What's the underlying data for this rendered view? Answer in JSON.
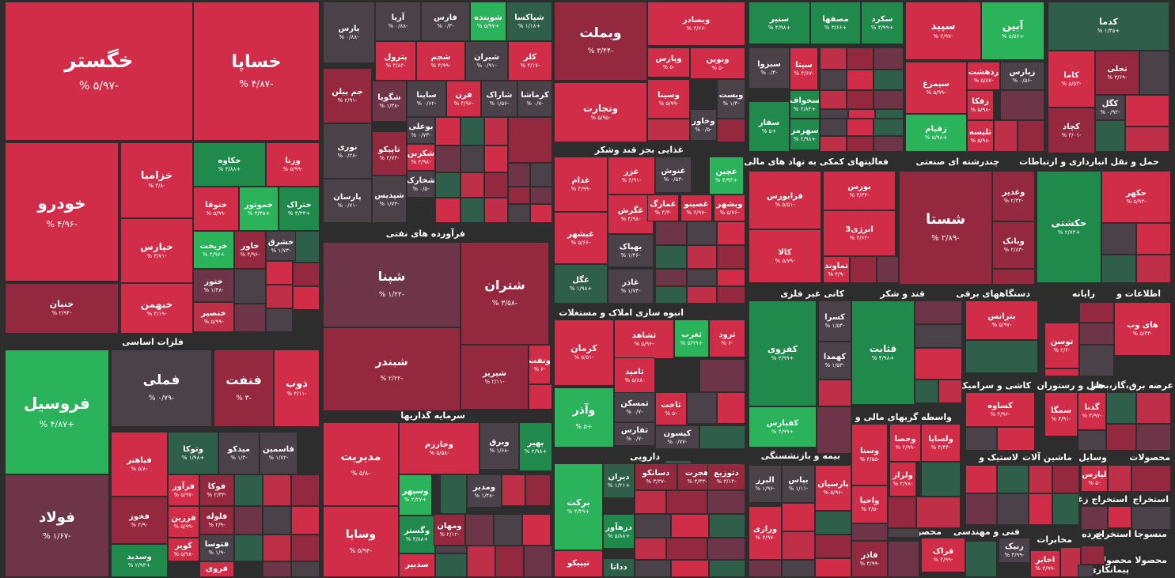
{
  "colors": {
    "background": "#2d2d2d",
    "strong_red": "#d22d48",
    "red": "#bf2f48",
    "dark_red": "#93283f",
    "muted_red": "#6e3548",
    "neutral": "#4a4248",
    "green": "#2bb35c",
    "mid_green": "#1f8a4c",
    "dark_green": "#2f5e4a"
  },
  "sectors": [
    {
      "label": "فلزات اساسی"
    },
    {
      "label": "فرآورده های نفتی"
    },
    {
      "label": "سرمایه گذاریها"
    },
    {
      "label": "غذایی بجز قند وشکر"
    },
    {
      "label": "انبوه سازی املاک و مستغلات"
    },
    {
      "label": "دارویی"
    },
    {
      "label": "فعالیتهای کمکی به نهاد های مالی واسط"
    },
    {
      "label": "چندرشته ای صنعتی"
    },
    {
      "label": "حمل و نقل انبارداری و ارتباطات"
    },
    {
      "label": "کانی غیر فلزی"
    },
    {
      "label": "قند و شکر"
    },
    {
      "label": "دستگاههای برقی"
    },
    {
      "label": "رایانه"
    },
    {
      "label": "اطلاعات و"
    },
    {
      "label": "بیمه و بازنشستگی"
    },
    {
      "label": "واسطه گریهای مالی و پولی"
    },
    {
      "label": "کاشی و سرامیک"
    },
    {
      "label": "هتل و رستوران"
    },
    {
      "label": "عرضه برق،گاز،بخار"
    },
    {
      "label": "لاستیک و"
    },
    {
      "label": "ماشین آلات"
    },
    {
      "label": "وسایل"
    },
    {
      "label": "محصولات"
    },
    {
      "label": "محصولات فلزی"
    },
    {
      "label": "فنی و مهندسی"
    },
    {
      "label": "مخابرات"
    },
    {
      "label": "استخراج زغال"
    },
    {
      "label": "استخراج"
    },
    {
      "label": "خرده"
    },
    {
      "label": "منسوجا استخراج"
    },
    {
      "label": "محصولا محصولا"
    },
    {
      "label": "پیمانکاری"
    }
  ],
  "tiles": [
    {
      "name": "خگستر",
      "change": "-۵/۹۷ %",
      "tone": "strong_red"
    },
    {
      "name": "خساپا",
      "change": "-۴/۸۷ %",
      "tone": "strong_red"
    },
    {
      "name": "خودرو",
      "change": "-۴/۹۶ %",
      "tone": "strong_red"
    },
    {
      "name": "خزامیا",
      "change": "-۴/۸ %",
      "tone": "strong_red"
    },
    {
      "name": "خکاوه",
      "change": "+۳/۸۸ %",
      "tone": "mid_green"
    },
    {
      "name": "ورنا",
      "change": "-۵/۹۹ %",
      "tone": "strong_red"
    },
    {
      "name": "ختوقا",
      "change": "-۵/۹۹ %",
      "tone": "strong_red"
    },
    {
      "name": "خموتور",
      "change": "+۳/۳۵ %",
      "tone": "green"
    },
    {
      "name": "ختراک",
      "change": "+۴/۳۳ %",
      "tone": "mid_green"
    },
    {
      "name": "خپارس",
      "change": "-۴/۷۱ %",
      "tone": "strong_red"
    },
    {
      "name": "خریخت",
      "change": "+۴/۹۷ %",
      "tone": "green"
    },
    {
      "name": "خاور",
      "change": "-۴/۹۶ %",
      "tone": "dark_red"
    },
    {
      "name": "خشرق",
      "change": "-۱/۷۳ %",
      "tone": "neutral"
    },
    {
      "name": "ختور",
      "change": "-۱/۴۸ %",
      "tone": "muted_red"
    },
    {
      "name": "خبهمن",
      "change": "-۴/۱۹ %",
      "tone": "strong_red"
    },
    {
      "name": "خنصیر",
      "change": "-۵/۹۹ %",
      "tone": "red"
    },
    {
      "name": "خنیان",
      "change": "-۲/۹۴ %",
      "tone": "dark_red"
    },
    {
      "name": "فروسیل",
      "change": "+۴/۸۷ %",
      "tone": "green"
    },
    {
      "name": "فملی",
      "change": "-۰/۷۹ %",
      "tone": "neutral"
    },
    {
      "name": "فنفت",
      "change": "-۳ %",
      "tone": "dark_red"
    },
    {
      "name": "ذوب",
      "change": "-۴/۱۱ %",
      "tone": "strong_red"
    },
    {
      "name": "فولاد",
      "change": "-۱/۶۷ %",
      "tone": "muted_red"
    },
    {
      "name": "فباهنر",
      "change": "-۵/۸ %",
      "tone": "strong_red"
    },
    {
      "name": "وتوکا",
      "change": "+۱/۹۸ %",
      "tone": "dark_green"
    },
    {
      "name": "میدکو",
      "change": "-۱/۳ %",
      "tone": "neutral"
    },
    {
      "name": "فاسمین",
      "change": "-۱/۷۲ %",
      "tone": "neutral"
    },
    {
      "name": "فخوز",
      "change": "-۲/۹ %",
      "tone": "dark_red"
    },
    {
      "name": "فرآور",
      "change": "-۵/۹۷ %",
      "tone": "strong_red"
    },
    {
      "name": "فوکا",
      "change": "-۲/۳۳ %",
      "tone": "dark_red"
    },
    {
      "name": "فزرین",
      "change": "-۵/۹۹ %",
      "tone": "strong_red"
    },
    {
      "name": "فلوله",
      "change": "-۲/۹ %",
      "tone": "dark_red"
    },
    {
      "name": "کویر",
      "change": "-۵/۹۸ %",
      "tone": "strong_red"
    },
    {
      "name": "فتوسا",
      "change": "-۱/۹ %",
      "tone": "neutral"
    },
    {
      "name": "فروی",
      "change": "",
      "tone": "strong_red"
    },
    {
      "name": "وسدید",
      "change": "+۲/۹۳ %",
      "tone": "mid_green"
    },
    {
      "name": "پارس",
      "change": "-۰/۸۸ %",
      "tone": "neutral"
    },
    {
      "name": "آریا",
      "change": "-۰/۸۸ %",
      "tone": "neutral"
    },
    {
      "name": "فارس",
      "change": "-۰/۳ %",
      "tone": "neutral"
    },
    {
      "name": "شوینده",
      "change": "+۵/۹۷ %",
      "tone": "green"
    },
    {
      "name": "شپاکسا",
      "change": "+۱/۱۸ %",
      "tone": "dark_green"
    },
    {
      "name": "پترول",
      "change": "-۴/۸۴ %",
      "tone": "strong_red"
    },
    {
      "name": "شجم",
      "change": "-۴/۹۹ %",
      "tone": "strong_red"
    },
    {
      "name": "شیران",
      "change": "-۰/۹۱ %",
      "tone": "neutral"
    },
    {
      "name": "کلر",
      "change": "-۴/۱۷ %",
      "tone": "strong_red"
    },
    {
      "name": "جم پیلن",
      "change": "-۲/۹۱ %",
      "tone": "dark_red"
    },
    {
      "name": "شگویا",
      "change": "-۱/۳۸ %",
      "tone": "muted_red"
    },
    {
      "name": "ساینا",
      "change": "-۰/۶۲ %",
      "tone": "neutral"
    },
    {
      "name": "فرن",
      "change": "-۴/۹۶ %",
      "tone": "strong_red"
    },
    {
      "name": "شاراک",
      "change": "-۱/۵۶ %",
      "tone": "neutral"
    },
    {
      "name": "کرماشا",
      "change": "-۰/۷ %",
      "tone": "neutral"
    },
    {
      "name": "بوعلی",
      "change": "-۰/۷۳ %",
      "tone": "neutral"
    },
    {
      "name": "نوری",
      "change": "-۰/۲۸ %",
      "tone": "neutral"
    },
    {
      "name": "تاپیکو",
      "change": "-۲/۷۳ %",
      "tone": "dark_red"
    },
    {
      "name": "شکربن",
      "change": "-۴/۹۸ %",
      "tone": "strong_red"
    },
    {
      "name": "شخارک",
      "change": "-۰/۵ %",
      "tone": "neutral"
    },
    {
      "name": "پارسان",
      "change": "-۰/۷۱ %",
      "tone": "neutral"
    },
    {
      "name": "شپدیس",
      "change": "-۱/۷۳ %",
      "tone": "neutral"
    },
    {
      "name": "شپنا",
      "change": "-۱/۲۲ %",
      "tone": "muted_red"
    },
    {
      "name": "شتران",
      "change": "-۳/۵۸ %",
      "tone": "dark_red"
    },
    {
      "name": "شبندر",
      "change": "-۲/۲۲ %",
      "tone": "dark_red"
    },
    {
      "name": "شیریز",
      "change": "-۲/۱۱ %",
      "tone": "dark_red"
    },
    {
      "name": "ونفت",
      "change": "-۶ %",
      "tone": "strong_red"
    },
    {
      "name": "مدیریت",
      "change": "-۵/۸ %",
      "tone": "strong_red"
    },
    {
      "name": "وخارزم",
      "change": "-۵/۵۸ %",
      "tone": "strong_red"
    },
    {
      "name": "وبرق",
      "change": "-۱/۶۸ %",
      "tone": "neutral"
    },
    {
      "name": "بهیر",
      "change": "+۲/۹۸ %",
      "tone": "mid_green"
    },
    {
      "name": "وسپهر",
      "change": "+۲/۲۷ %",
      "tone": "green"
    },
    {
      "name": "ومدیر",
      "change": "-۱/۴۸ %",
      "tone": "neutral"
    },
    {
      "name": "وگستر",
      "change": "+۴/۸۸ %",
      "tone": "mid_green"
    },
    {
      "name": "ومهان",
      "change": "-۲/۱۲ %",
      "tone": "dark_red"
    },
    {
      "name": "وساپا",
      "change": "-۵/۹۴ %",
      "tone": "strong_red"
    },
    {
      "name": "سدبیر",
      "change": "",
      "tone": "strong_red"
    },
    {
      "name": "وبملت",
      "change": "-۳/۴۴ %",
      "tone": "dark_red"
    },
    {
      "name": "وبصادر",
      "change": "-۴/۶۶ %",
      "tone": "strong_red"
    },
    {
      "name": "وتجارت",
      "change": "-۵/۹۵ %",
      "tone": "strong_red"
    },
    {
      "name": "وپارس",
      "change": "-۵ %",
      "tone": "strong_red"
    },
    {
      "name": "ونوین",
      "change": "-۵ %",
      "tone": "strong_red"
    },
    {
      "name": "وسینا",
      "change": "-۵/۹۹ %",
      "tone": "strong_red"
    },
    {
      "name": "وبست",
      "change": "-۱/۳ %",
      "tone": "neutral"
    },
    {
      "name": "وخاور",
      "change": "-۰/۵ %",
      "tone": "neutral"
    },
    {
      "name": "غدام",
      "change": "-۴/۹۹ %",
      "tone": "strong_red"
    },
    {
      "name": "غزر",
      "change": "-۴/۹۱ %",
      "tone": "strong_red"
    },
    {
      "name": "غنوش",
      "change": "-۰/۵۳ %",
      "tone": "neutral"
    },
    {
      "name": "غچین",
      "change": "+۴/۹۳ %",
      "tone": "green"
    },
    {
      "name": "غگرش",
      "change": "-۴/۹۸ %",
      "tone": "strong_red"
    },
    {
      "name": "غمارگ",
      "change": "-۴/۴ %",
      "tone": "strong_red"
    },
    {
      "name": "غصینو",
      "change": "-۴/۹۷ %",
      "tone": "strong_red"
    },
    {
      "name": "وبشهر",
      "change": "-۵/۷۶ %",
      "tone": "strong_red"
    },
    {
      "name": "غبشهر",
      "change": "-۵/۶۶ %",
      "tone": "strong_red"
    },
    {
      "name": "بهپاک",
      "change": "-۱/۴۶ %",
      "tone": "neutral"
    },
    {
      "name": "غگل",
      "change": "+۱/۹۸ %",
      "tone": "dark_green"
    },
    {
      "name": "غاذر",
      "change": "-۱/۷۳ %",
      "tone": "neutral"
    },
    {
      "name": "کرمان",
      "change": "-۵/۵۱ %",
      "tone": "strong_red"
    },
    {
      "name": "ثشاهد",
      "change": "-۵/۹۶ %",
      "tone": "strong_red"
    },
    {
      "name": "ثغرب",
      "change": "+۵/۹۹ %",
      "tone": "green"
    },
    {
      "name": "ثرود",
      "change": "-۶ %",
      "tone": "strong_red"
    },
    {
      "name": "ثامید",
      "change": "-۵/۸۸ %",
      "tone": "strong_red"
    },
    {
      "name": "وآذر",
      "change": "+۵ %",
      "tone": "green"
    },
    {
      "name": "ثمسکن",
      "change": "-۰/۷ %",
      "tone": "neutral"
    },
    {
      "name": "ثاخت",
      "change": "-۵ %",
      "tone": "strong_red"
    },
    {
      "name": "ثفارس",
      "change": "-۰/۷ %",
      "tone": "neutral"
    },
    {
      "name": "کیسون",
      "change": "-۰/۷۷ %",
      "tone": "neutral"
    },
    {
      "name": "برکت",
      "change": "+۴/۴۹ %",
      "tone": "green"
    },
    {
      "name": "دیران",
      "change": "+۱/۲۱ %",
      "tone": "dark_green"
    },
    {
      "name": "دسانکو",
      "change": "-۳/۳۷ %",
      "tone": "dark_red"
    },
    {
      "name": "هجرت",
      "change": "-۳/۳۳ %",
      "tone": "dark_red"
    },
    {
      "name": "دتوزیع",
      "change": "-۳/۱۴ %",
      "tone": "dark_red"
    },
    {
      "name": "درهآور",
      "change": "+۵/۸۸ %",
      "tone": "mid_green"
    },
    {
      "name": "تیپیکو",
      "change": "",
      "tone": "strong_red"
    },
    {
      "name": "دداتا",
      "change": "",
      "tone": "dark_green"
    },
    {
      "name": "سنیر",
      "change": "+۴/۹۸ %",
      "tone": "mid_green"
    },
    {
      "name": "مصفها",
      "change": "+۳/۶۶ %",
      "tone": "mid_green"
    },
    {
      "name": "سکرد",
      "change": "+۳/۹۹ %",
      "tone": "mid_green"
    },
    {
      "name": "سپید",
      "change": "-۴/۹۷ %",
      "tone": "strong_red"
    },
    {
      "name": "آبین",
      "change": "+۵/۵۷ %",
      "tone": "green"
    },
    {
      "name": "کدما",
      "change": "+۱/۴۵ %",
      "tone": "dark_green"
    },
    {
      "name": "سبزوا",
      "change": "-۰/۴ %",
      "tone": "neutral"
    },
    {
      "name": "سیتا",
      "change": "-۴/۶۷ %",
      "tone": "strong_red"
    },
    {
      "name": "سیمرغ",
      "change": "-۵/۹۹ %",
      "tone": "strong_red"
    },
    {
      "name": "رذهشت",
      "change": "-۵/۸۷ %",
      "tone": "strong_red"
    },
    {
      "name": "زپارس",
      "change": "-۰/۵۶ %",
      "tone": "neutral"
    },
    {
      "name": "کاما",
      "change": "-۵/۵۳ %",
      "tone": "strong_red"
    },
    {
      "name": "تجلی",
      "change": "-۳/۶۹ %",
      "tone": "dark_red"
    },
    {
      "name": "سخواف",
      "change": "+۲/۸۲ %",
      "tone": "mid_green"
    },
    {
      "name": "زفکا",
      "change": "-۵/۹۸ %",
      "tone": "strong_red"
    },
    {
      "name": "کگل",
      "change": "-۰/۹۲ %",
      "tone": "neutral"
    },
    {
      "name": "سفار",
      "change": "+۵ %",
      "tone": "mid_green"
    },
    {
      "name": "سهرمز",
      "change": "+۲/۹۸ %",
      "tone": "mid_green"
    },
    {
      "name": "زقیام",
      "change": "+۵/۹۸ %",
      "tone": "green"
    },
    {
      "name": "تلیسه",
      "change": "-۵/۹۸ %",
      "tone": "strong_red"
    },
    {
      "name": "کچاد",
      "change": "-۳/۰۱ %",
      "tone": "dark_red"
    },
    {
      "name": "فرابورس",
      "change": "-۵/۵۱ %",
      "tone": "strong_red"
    },
    {
      "name": "بورس",
      "change": "-۴/۳۴ %",
      "tone": "strong_red"
    },
    {
      "name": "شستا",
      "change": "-۲/۸۹ %",
      "tone": "dark_red"
    },
    {
      "name": "وغدیر",
      "change": "-۲/۳۲ %",
      "tone": "dark_red"
    },
    {
      "name": "حکشتی",
      "change": "+۲/۷۳ %",
      "tone": "mid_green"
    },
    {
      "name": "حکهر",
      "change": "-۵/۹۳ %",
      "tone": "strong_red"
    },
    {
      "name": "انرژی3",
      "change": "-۴/۶۳ %",
      "tone": "strong_red"
    },
    {
      "name": "وبانک",
      "change": "-۲/۸۳ %",
      "tone": "dark_red"
    },
    {
      "name": "کالا",
      "change": "-۵/۷۹ %",
      "tone": "strong_red"
    },
    {
      "name": "تماوند",
      "change": "-۴/۹ %",
      "tone": "strong_red"
    },
    {
      "name": "کسرا",
      "change": "-۱/۵۴ %",
      "tone": "neutral"
    },
    {
      "name": "قثابت",
      "change": "+۴/۹۸ %",
      "tone": "mid_green"
    },
    {
      "name": "بترانس",
      "change": "-۵/۹۷ %",
      "tone": "strong_red"
    },
    {
      "name": "توسن",
      "change": "-۲/۲ %",
      "tone": "strong_red"
    },
    {
      "name": "های وب",
      "change": "-۵/۳۴ %",
      "tone": "strong_red"
    },
    {
      "name": "کفزوی",
      "change": "+۲/۹۹ %",
      "tone": "mid_green"
    },
    {
      "name": "کهمدا",
      "change": "-۱/۵۳ %",
      "tone": "neutral"
    },
    {
      "name": "کفپارس",
      "change": "+۴/۹۹ %",
      "tone": "green"
    },
    {
      "name": "کساوه",
      "change": "-۴/۹۶ %",
      "tone": "strong_red"
    },
    {
      "name": "سمگا",
      "change": "-۴/۹۱ %",
      "tone": "strong_red"
    },
    {
      "name": "گدنا",
      "change": "-۴/۹۷ %",
      "tone": "strong_red"
    },
    {
      "name": "البرز",
      "change": "-۱/۹۶ %",
      "tone": "neutral"
    },
    {
      "name": "بپاس",
      "change": "-۱/۱۱ %",
      "tone": "neutral"
    },
    {
      "name": "پارسیان",
      "change": "-۵/۹۶ %",
      "tone": "strong_red"
    },
    {
      "name": "وحصا",
      "change": "-۴/۹۹ %",
      "tone": "strong_red"
    },
    {
      "name": "ولساپا",
      "change": "-۴/۴۴ %",
      "tone": "strong_red"
    },
    {
      "name": "ورازی",
      "change": "-۴/۹۷ %",
      "tone": "strong_red"
    },
    {
      "name": "وسنا",
      "change": "-۴/۵۵ %",
      "tone": "strong_red"
    },
    {
      "name": "ولراز",
      "change": "-۲/۷۸ %",
      "tone": "strong_red"
    },
    {
      "name": "واحیا",
      "change": "-۲/۵ %",
      "tone": "strong_red"
    },
    {
      "name": "لپارس",
      "change": "-۵ %",
      "tone": "strong_red"
    },
    {
      "name": "فاذر",
      "change": "-۴/۹۹ %",
      "tone": "dark_red"
    },
    {
      "name": "فراک",
      "change": "-۴/۹۹ %",
      "tone": "strong_red"
    },
    {
      "name": "رنیک",
      "change": "-۴/۹۹ %",
      "tone": "neutral"
    },
    {
      "name": "اخابر",
      "change": "-۴/۹۹ %",
      "tone": "strong_red"
    }
  ]
}
